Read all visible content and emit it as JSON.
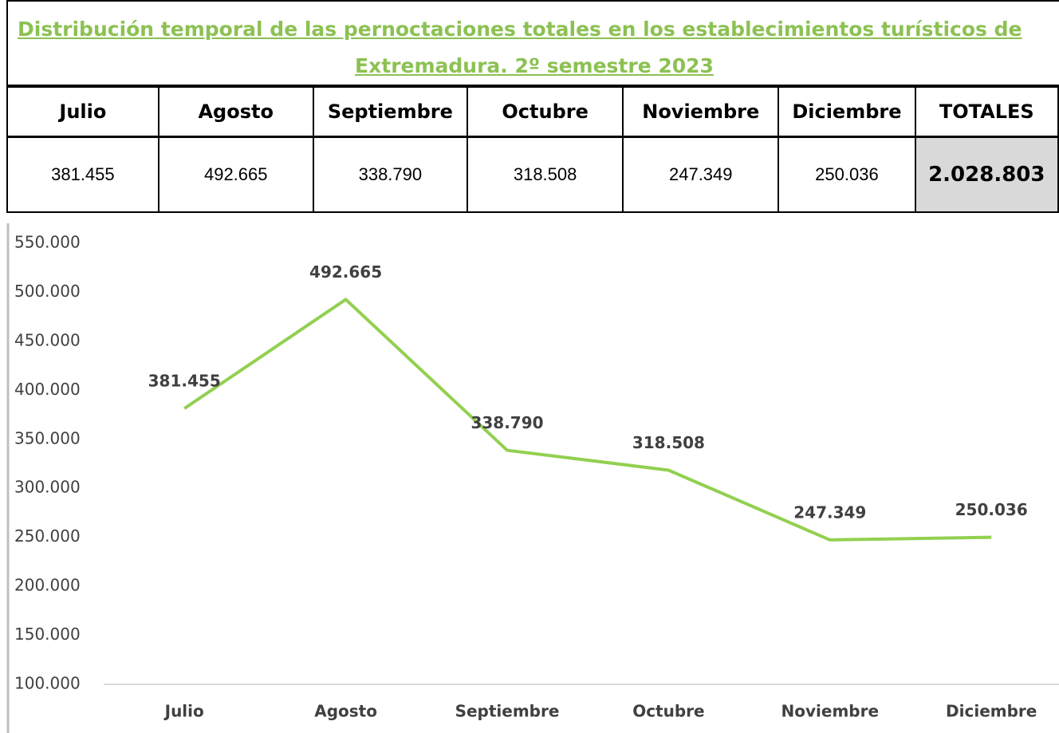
{
  "table": {
    "title": [
      "Distribución temporal de las pernoctaciones totales en los establecimientos turísticos de",
      "Extremadura. 2º semestre 2023"
    ],
    "header": [
      "Julio",
      "Agosto",
      "Septiembre",
      "Octubre",
      "Noviembre",
      "Diciembre",
      "TOTALES"
    ],
    "rows": [
      [
        "381.455",
        "492.665",
        "338.790",
        "318.508",
        "247.349",
        "250.036",
        "2.028.803"
      ]
    ]
  },
  "chart_data": {
    "type": "line",
    "categories": [
      "Julio",
      "Agosto",
      "Septiembre",
      "Octubre",
      "Noviembre",
      "Diciembre"
    ],
    "values": [
      381455,
      492665,
      338790,
      318508,
      247349,
      250036
    ],
    "value_labels": [
      "381.455",
      "492.665",
      "338.790",
      "318.508",
      "247.349",
      "250.036"
    ],
    "color": "#92d050",
    "ylim": [
      100000,
      550000
    ],
    "yticks": [
      {
        "value": 100000,
        "label": "100.000"
      },
      {
        "value": 150000,
        "label": "150.000"
      },
      {
        "value": 200000,
        "label": "200.000"
      },
      {
        "value": 250000,
        "label": "250.000"
      },
      {
        "value": 300000,
        "label": "300.000"
      },
      {
        "value": 350000,
        "label": "350.000"
      },
      {
        "value": 400000,
        "label": "400.000"
      },
      {
        "value": 450000,
        "label": "450.000"
      },
      {
        "value": 500000,
        "label": "500.000"
      },
      {
        "value": 550000,
        "label": "550.000"
      }
    ]
  }
}
